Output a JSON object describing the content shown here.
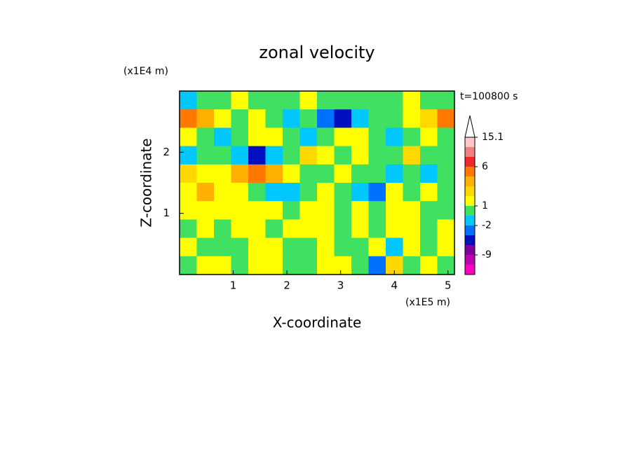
{
  "chart_data": {
    "type": "contour",
    "title": "zonal velocity",
    "xlabel": "X-coordinate",
    "ylabel": "Z-coordinate",
    "x_unit": "(x1E5 m)",
    "y_unit": "(x1E4 m)",
    "annotation": "t=100800 s",
    "xlim": [
      0,
      5.12
    ],
    "ylim": [
      0,
      3
    ],
    "xticks": [
      1,
      2,
      3,
      4,
      5
    ],
    "yticks": [
      1,
      2
    ],
    "levels": [
      -15,
      -12,
      -9,
      -6,
      -4,
      -2,
      -1,
      1,
      2,
      3,
      4,
      6,
      10,
      13,
      15.1
    ],
    "colors": [
      "#ff00c0",
      "#c000b0",
      "#8000a0",
      "#0010c0",
      "#0070ff",
      "#00c8ff",
      "#40e060",
      "#ffff00",
      "#ffd800",
      "#ffb000",
      "#ff7800",
      "#f02828",
      "#f08080",
      "#ffc8c8"
    ],
    "colorbar_ticks": [
      -9,
      -2,
      1,
      6,
      15.1
    ],
    "z": [
      [
        -1.5,
        0.5,
        0.5,
        1.5,
        0.5,
        0.5,
        0.5,
        1.5,
        0.5,
        0.5,
        0.5,
        0.5,
        0.5,
        1.5,
        0.5,
        0.5
      ],
      [
        4.5,
        3.5,
        1.5,
        0.5,
        1.5,
        0.5,
        -1.5,
        0.5,
        -3,
        -5,
        -1.5,
        0.5,
        0.5,
        1.5,
        2.5,
        4.5
      ],
      [
        1.5,
        0.5,
        -1.5,
        0.5,
        1.5,
        1.5,
        0.5,
        -1.5,
        0.5,
        1.5,
        1.5,
        0.5,
        -1.5,
        0.5,
        1.5,
        0.5
      ],
      [
        -1.5,
        0.5,
        0.5,
        -1.5,
        -5,
        -1.5,
        0.5,
        2.5,
        1.5,
        0.5,
        1.5,
        0.5,
        0.5,
        2.5,
        0.5,
        0.5
      ],
      [
        2.5,
        1.5,
        1.5,
        3.5,
        4.5,
        3.5,
        1.5,
        0.5,
        0.5,
        1.5,
        0.5,
        0.5,
        -1.5,
        0.5,
        -1.5,
        0.5
      ],
      [
        1.5,
        3.5,
        1.5,
        1.5,
        0.5,
        -1.5,
        -1.5,
        0.5,
        1.5,
        0.5,
        -1.5,
        -3,
        1.5,
        0.5,
        1.5,
        0.5
      ],
      [
        1.5,
        1.5,
        1.5,
        1.5,
        1.5,
        1.5,
        0.5,
        1.5,
        1.5,
        0.5,
        1.5,
        0.5,
        1.5,
        1.5,
        0.5,
        0.5
      ],
      [
        0.5,
        1.5,
        0.5,
        1.5,
        1.5,
        0.5,
        1.5,
        1.5,
        1.5,
        0.5,
        1.5,
        0.5,
        1.5,
        1.5,
        0.5,
        1.5
      ],
      [
        1.5,
        0.5,
        0.5,
        0.5,
        1.5,
        1.5,
        0.5,
        0.5,
        1.5,
        0.5,
        0.5,
        1.5,
        -1.5,
        1.5,
        0.5,
        1.5
      ],
      [
        0.5,
        1.5,
        1.5,
        0.5,
        1.5,
        1.5,
        0.5,
        0.5,
        1.5,
        1.5,
        0.5,
        -3,
        2.5,
        0.5,
        1.5,
        0.5
      ]
    ]
  }
}
